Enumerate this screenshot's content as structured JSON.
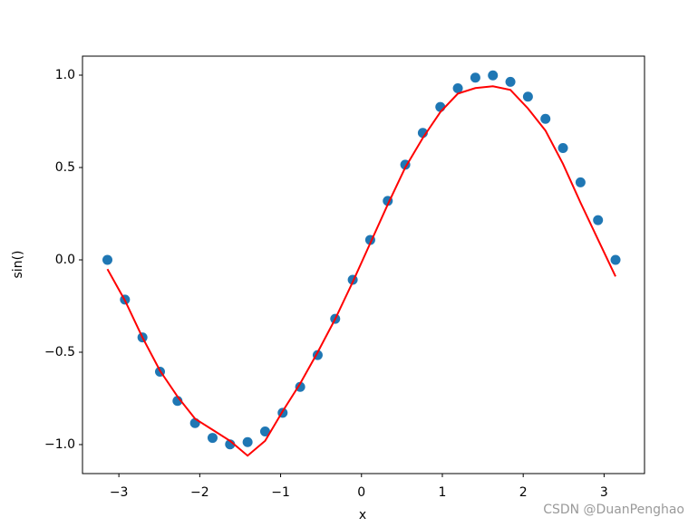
{
  "chart_data": {
    "type": "scatter",
    "xlabel": "x",
    "ylabel": "sin()",
    "watermark": "CSDN @DuanPenghao",
    "x": [
      -3.1416,
      -2.9249,
      -2.7083,
      -2.4916,
      -2.275,
      -2.0583,
      -1.8417,
      -1.625,
      -1.4083,
      -1.1916,
      -0.975,
      -0.7583,
      -0.5416,
      -0.325,
      -0.1083,
      0.1083,
      0.325,
      0.5416,
      0.7583,
      0.975,
      1.1916,
      1.4083,
      1.625,
      1.8417,
      2.0583,
      2.275,
      2.4916,
      2.7083,
      2.9249,
      3.1416
    ],
    "series": [
      {
        "type": "scatter",
        "color": "#1f77b4",
        "values": [
          0,
          -0.215,
          -0.4199,
          -0.6056,
          -0.7635,
          -0.8836,
          -0.9637,
          -0.9986,
          -0.9867,
          -0.929,
          -0.8277,
          -0.6877,
          -0.5155,
          -0.3193,
          -0.1081,
          0.1081,
          0.3193,
          0.5155,
          0.6877,
          0.8277,
          0.929,
          0.9867,
          0.9986,
          0.9637,
          0.8836,
          0.7635,
          0.6056,
          0.4199,
          0.215,
          0
        ]
      },
      {
        "type": "line",
        "color": "#ff0000",
        "values": [
          -0.05,
          -0.22,
          -0.42,
          -0.6,
          -0.74,
          -0.86,
          -0.92,
          -0.98,
          -1.06,
          -0.98,
          -0.82,
          -0.67,
          -0.5,
          -0.32,
          -0.12,
          0.09,
          0.3,
          0.5,
          0.66,
          0.8,
          0.9,
          0.93,
          0.94,
          0.92,
          0.82,
          0.7,
          0.52,
          0.31,
          0.11,
          -0.09
        ]
      }
    ],
    "xlim": [
      -3.45,
      3.5
    ],
    "ylim": [
      -1.157,
      1.103
    ],
    "xticks": [
      {
        "value": -3,
        "label": "−3"
      },
      {
        "value": -2,
        "label": "−2"
      },
      {
        "value": -1,
        "label": "−1"
      },
      0,
      1,
      2,
      3
    ],
    "yticks": [
      {
        "value": -1,
        "label": "−1.0"
      },
      {
        "value": -0.5,
        "label": "−0.5"
      },
      {
        "value": 0,
        "label": "0.0"
      },
      {
        "value": 0.5,
        "label": "0.5"
      },
      {
        "value": 1,
        "label": "1.0"
      }
    ]
  }
}
